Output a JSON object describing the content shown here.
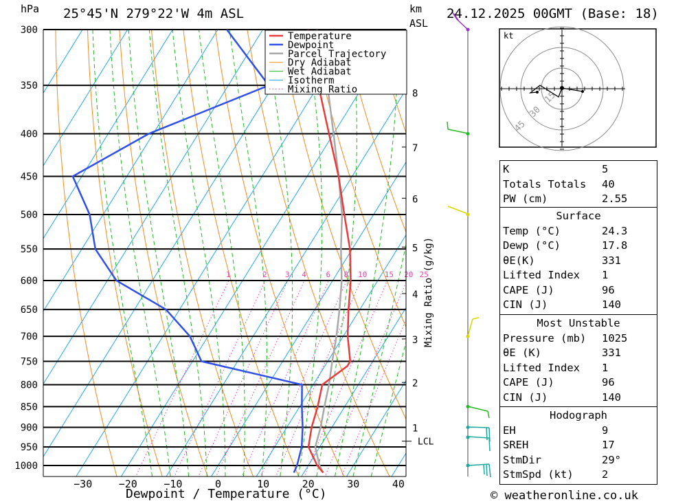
{
  "header": {
    "location": "25°45'N 279°22'W 4m ASL",
    "run": "24.12.2025 00GMT (Base: 18)",
    "hpa_unit": "hPa",
    "km_unit": "km",
    "asl_unit": "ASL",
    "credit": "© weatheronline.co.uk"
  },
  "chart_data": {
    "type": "skew-t",
    "xlabel": "Dewpoint / Temperature (°C)",
    "ylabel": "hPa",
    "mixing_ratio_axis_label": "Mixing Ratio (g/kg)",
    "x_ticks": [
      -30,
      -20,
      -10,
      0,
      10,
      20,
      30,
      40
    ],
    "pressure_levels": [
      300,
      350,
      400,
      450,
      500,
      550,
      600,
      650,
      700,
      750,
      800,
      850,
      900,
      950,
      1000
    ],
    "km_ticks": [
      "1",
      "2",
      "3",
      "4",
      "5",
      "6",
      "7",
      "8"
    ],
    "lcl_label": "LCL",
    "lcl_pressure": 935,
    "mixing_ratio_labels": [
      "1",
      "2",
      "3",
      "4",
      "6",
      "8",
      "10",
      "15",
      "20",
      "25"
    ],
    "legend": [
      "Temperature",
      "Dewpoint",
      "Parcel Trajectory",
      "Dry Adiabat",
      "Wet Adiabat",
      "Isotherm",
      "Mixing Ratio"
    ],
    "colors": {
      "temperature": "#e83a3a",
      "dewpoint": "#2f4fe8",
      "parcel": "#a8a8a8",
      "dry_adiabat": "#f08a1c",
      "wet_adiabat": "#22b822",
      "isotherm": "#22a6e8",
      "mixing_ratio": "#e040b0"
    },
    "series": [
      {
        "name": "Temperature",
        "points": [
          [
            1020,
            24.3
          ],
          [
            1000,
            22.0
          ],
          [
            950,
            17.5
          ],
          [
            900,
            15.5
          ],
          [
            850,
            14.0
          ],
          [
            800,
            12.0
          ],
          [
            760,
            15.0
          ],
          [
            750,
            15.0
          ],
          [
            700,
            11.0
          ],
          [
            650,
            7.5
          ],
          [
            600,
            4.0
          ],
          [
            550,
            -0.5
          ],
          [
            500,
            -6.5
          ],
          [
            450,
            -13.0
          ],
          [
            400,
            -21.0
          ],
          [
            350,
            -30.0
          ],
          [
            300,
            -40.0
          ]
        ]
      },
      {
        "name": "Dewpoint",
        "points": [
          [
            1020,
            17.8
          ],
          [
            1000,
            17.5
          ],
          [
            950,
            16.0
          ],
          [
            900,
            13.5
          ],
          [
            850,
            10.5
          ],
          [
            800,
            7.5
          ],
          [
            750,
            -18.0
          ],
          [
            700,
            -24.0
          ],
          [
            650,
            -33.0
          ],
          [
            600,
            -48.0
          ],
          [
            550,
            -57.0
          ],
          [
            500,
            -63.0
          ],
          [
            450,
            -72.0
          ],
          [
            400,
            -61.0
          ],
          [
            350,
            -41.0
          ],
          [
            300,
            -58.0
          ]
        ]
      },
      {
        "name": "Parcel Trajectory",
        "points": [
          [
            1020,
            24.3
          ],
          [
            1000,
            22.5
          ],
          [
            950,
            19.0
          ],
          [
            900,
            17.5
          ],
          [
            850,
            15.5
          ],
          [
            800,
            13.5
          ],
          [
            750,
            11.0
          ],
          [
            700,
            8.5
          ],
          [
            650,
            5.5
          ],
          [
            600,
            2.0
          ],
          [
            550,
            -2.5
          ],
          [
            500,
            -7.0
          ],
          [
            450,
            -13.0
          ],
          [
            400,
            -20.0
          ],
          [
            350,
            -28.0
          ],
          [
            300,
            -38.0
          ]
        ]
      }
    ]
  },
  "hodograph": {
    "unit": "kt",
    "rings": [
      "15",
      "30",
      "45"
    ]
  },
  "indices": {
    "k": {
      "label": "K",
      "value": "5"
    },
    "tt": {
      "label": "Totals Totals",
      "value": "40"
    },
    "pw": {
      "label": "PW (cm)",
      "value": "2.55"
    },
    "surface": {
      "title": "Surface",
      "rows": [
        {
          "label": "Temp (°C)",
          "value": "24.3"
        },
        {
          "label": "Dewp (°C)",
          "value": "17.8"
        },
        {
          "label": "θE(K)",
          "value": "331"
        },
        {
          "label": "Lifted Index",
          "value": "1"
        },
        {
          "label": "CAPE (J)",
          "value": "96"
        },
        {
          "label": "CIN (J)",
          "value": "140"
        }
      ]
    },
    "most_unstable": {
      "title": "Most Unstable",
      "rows": [
        {
          "label": "Pressure (mb)",
          "value": "1025"
        },
        {
          "label": "θE (K)",
          "value": "331"
        },
        {
          "label": "Lifted Index",
          "value": "1"
        },
        {
          "label": "CAPE (J)",
          "value": "96"
        },
        {
          "label": "CIN (J)",
          "value": "140"
        }
      ]
    },
    "hodograph_box": {
      "title": "Hodograph",
      "rows": [
        {
          "label": "EH",
          "value": "9"
        },
        {
          "label": "SREH",
          "value": "17"
        },
        {
          "label": "StmDir",
          "value": "29°"
        },
        {
          "label": "StmSpd (kt)",
          "value": "2"
        }
      ]
    }
  }
}
